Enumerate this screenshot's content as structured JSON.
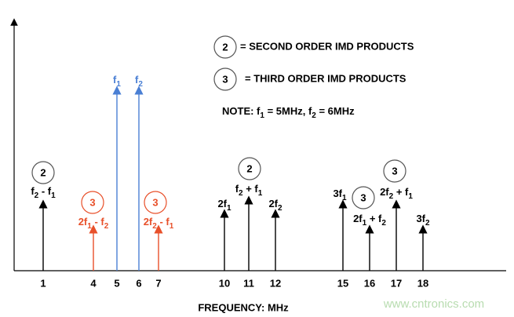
{
  "items": [
    {
      "freq": "1",
      "label": [
        "f",
        "2",
        " - f",
        "1"
      ],
      "circle": "2",
      "color": "#000000"
    },
    {
      "freq": "4",
      "label": [
        "2f",
        "1",
        " - f",
        "2"
      ],
      "circle": "3",
      "color": "#e8502a"
    },
    {
      "freq": "5",
      "label": [
        "f",
        "1"
      ],
      "color": "#4a7fd4"
    },
    {
      "freq": "6",
      "label": [
        "f",
        "2"
      ],
      "color": "#4a7fd4"
    },
    {
      "freq": "7",
      "label": [
        "2f",
        "2",
        " - f",
        "1"
      ],
      "circle": "3",
      "color": "#e8502a"
    },
    {
      "freq": "10",
      "label": [
        "2f",
        "1"
      ],
      "color": "#000000"
    },
    {
      "freq": "11",
      "label": [
        "f",
        "2",
        " + f",
        "1"
      ],
      "circle": "2",
      "color": "#000000"
    },
    {
      "freq": "12",
      "label": [
        "2f",
        "2"
      ],
      "color": "#000000"
    },
    {
      "freq": "15",
      "label": [
        "3f",
        "1"
      ],
      "color": "#000000"
    },
    {
      "freq": "16",
      "label": [
        "2f",
        "1",
        " + f",
        "2"
      ],
      "circle": "3",
      "color": "#000000"
    },
    {
      "freq": "17",
      "label": [
        "2f",
        "2",
        " + f",
        "1"
      ],
      "circle": "3",
      "color": "#000000"
    },
    {
      "freq": "18",
      "label": [
        "3f",
        "2"
      ],
      "color": "#000000"
    }
  ],
  "legend": [
    {
      "symbol": "2",
      "text": "= SECOND ORDER IMD PRODUCTS"
    },
    {
      "symbol": "3",
      "text": "= THIRD ORDER IMD PRODUCTS"
    }
  ],
  "note": [
    "NOTE:  f",
    "1",
    " = 5MHz, f",
    "2",
    " = 6MHz"
  ],
  "axis_title": "FREQUENCY: MHz",
  "watermark": "www.cntronics.com"
}
